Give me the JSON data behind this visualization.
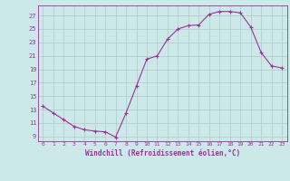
{
  "x": [
    0,
    1,
    2,
    3,
    4,
    5,
    6,
    7,
    8,
    9,
    10,
    11,
    12,
    13,
    14,
    15,
    16,
    17,
    18,
    19,
    20,
    21,
    22,
    23
  ],
  "y": [
    13.5,
    12.5,
    11.5,
    10.5,
    10.0,
    9.8,
    9.7,
    8.9,
    12.5,
    16.5,
    20.5,
    21.0,
    23.5,
    25.0,
    25.5,
    25.6,
    27.2,
    27.6,
    27.6,
    27.4,
    25.3,
    21.5,
    19.5,
    19.2
  ],
  "line_color": "#993399",
  "marker": "+",
  "marker_size": 3,
  "bg_color": "#cce8e8",
  "grid_color": "#b0c8c8",
  "xlabel": "Windchill (Refroidissement éolien,°C)",
  "xlabel_fontsize": 5.5,
  "yticks": [
    9,
    11,
    13,
    15,
    17,
    19,
    21,
    23,
    25,
    27
  ],
  "xlim": [
    -0.5,
    23.5
  ],
  "ylim": [
    8.3,
    28.5
  ],
  "xtick_fontsize": 4.5,
  "ytick_fontsize": 5.0
}
